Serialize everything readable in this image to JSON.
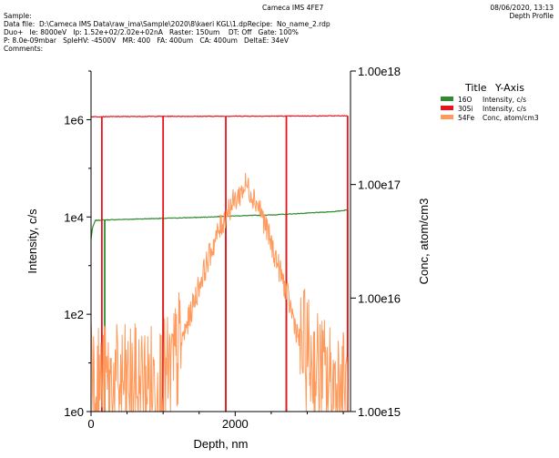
{
  "header": {
    "instrument": "Cameca IMS 4FE7",
    "date": "08/06/2020, 13:13",
    "report": "Depth Profile",
    "sample": "Sample:",
    "data_file": "Data file:  D:\\Cameca IMS Data\\raw_ima\\Sample\\2020\\8\\kaeri KGL\\1.dp",
    "recipe": "Recipe:  No_name_2.rdp",
    "line3": "Duo+   Ie: 8000eV   Ip: 1.52e+02/2.02e+02nA   Raster: 150um    DT: Off   Gate: 100%",
    "line4": "P: 8.0e-09mbar   SpleHV: -4500V   MR: 400   FA: 400um   CA: 400um   DeltaE: 34eV",
    "comments": "Comments:"
  },
  "legend": {
    "title_col1": "Title",
    "title_col2": "Y-Axis",
    "rows": [
      {
        "name": "16O",
        "axis": "Intensity, c/s",
        "color": "#2e8b2e"
      },
      {
        "name": "30Si",
        "axis": "Intensity, c/s",
        "color": "#e8141c"
      },
      {
        "name": "54Fe",
        "axis": "Conc, atom/cm3",
        "color": "#ff9a5c"
      }
    ]
  },
  "chart_data": {
    "type": "line",
    "xlabel": "Depth, nm",
    "ylabel_left": "Intensity, c/s",
    "ylabel_right": "Conc, atom/cm3",
    "xlim": [
      0,
      3600
    ],
    "x_ticks": [
      "0",
      "2000"
    ],
    "x_tick_values": [
      0,
      2000
    ],
    "ylim_left": [
      1,
      10000000.0
    ],
    "y_scale_left": "log",
    "y_ticks_left": [
      "1e0",
      "1e2",
      "1e4",
      "1e6"
    ],
    "y_tick_values_left": [
      1,
      100,
      10000,
      1000000
    ],
    "ylim_right": [
      1000000000000000.0,
      1e+18
    ],
    "y_scale_right": "log",
    "y_ticks_right": [
      "1.00e15",
      "1.00e16",
      "1.00e17",
      "1.00e18"
    ],
    "y_tick_values_right": [
      1000000000000000.0,
      1e+16,
      1e+17,
      1e+18
    ],
    "series": [
      {
        "name": "16O",
        "axis": "left",
        "color": "#2e8b2e",
        "x": [
          0,
          20,
          60,
          200,
          800,
          1500,
          2000,
          2500,
          3000,
          3400,
          3560
        ],
        "y": [
          3500,
          6000,
          8500,
          8700,
          9200,
          9800,
          10500,
          11000,
          12000,
          13000,
          14000
        ],
        "dropouts": [
          190,
          1000,
          1870,
          2710,
          3560
        ]
      },
      {
        "name": "30Si",
        "axis": "left",
        "color": "#e8141c",
        "x": [
          0,
          500,
          1000,
          1500,
          2000,
          2500,
          3000,
          3560
        ],
        "y": [
          1150000,
          1160000,
          1170000,
          1170000,
          1180000,
          1180000,
          1190000,
          1200000
        ],
        "dropouts": [
          150,
          1000,
          1870,
          2710,
          3560
        ]
      },
      {
        "name": "54Fe",
        "axis": "right",
        "color": "#ff9a5c",
        "x": [
          0,
          15,
          40,
          100,
          300,
          600,
          900,
          1100,
          1300,
          1500,
          1700,
          1900,
          2050,
          2150,
          2250,
          2350,
          2500,
          2700,
          2900,
          3100,
          3300,
          3500,
          3560
        ],
        "y": [
          7000000000000000.0,
          3500000000000000.0,
          2000000000000000.0,
          1800000000000000.0,
          1700000000000000.0,
          1700000000000000.0,
          1800000000000000.0,
          2000000000000000.0,
          5000000000000000.0,
          1.3e+16,
          3e+16,
          6e+16,
          8e+16,
          1e+17,
          8e+16,
          6e+16,
          3e+16,
          1.2e+16,
          4000000000000000.0,
          2500000000000000.0,
          1800000000000000.0,
          1600000000000000.0,
          1500000000000000.0
        ]
      }
    ]
  }
}
